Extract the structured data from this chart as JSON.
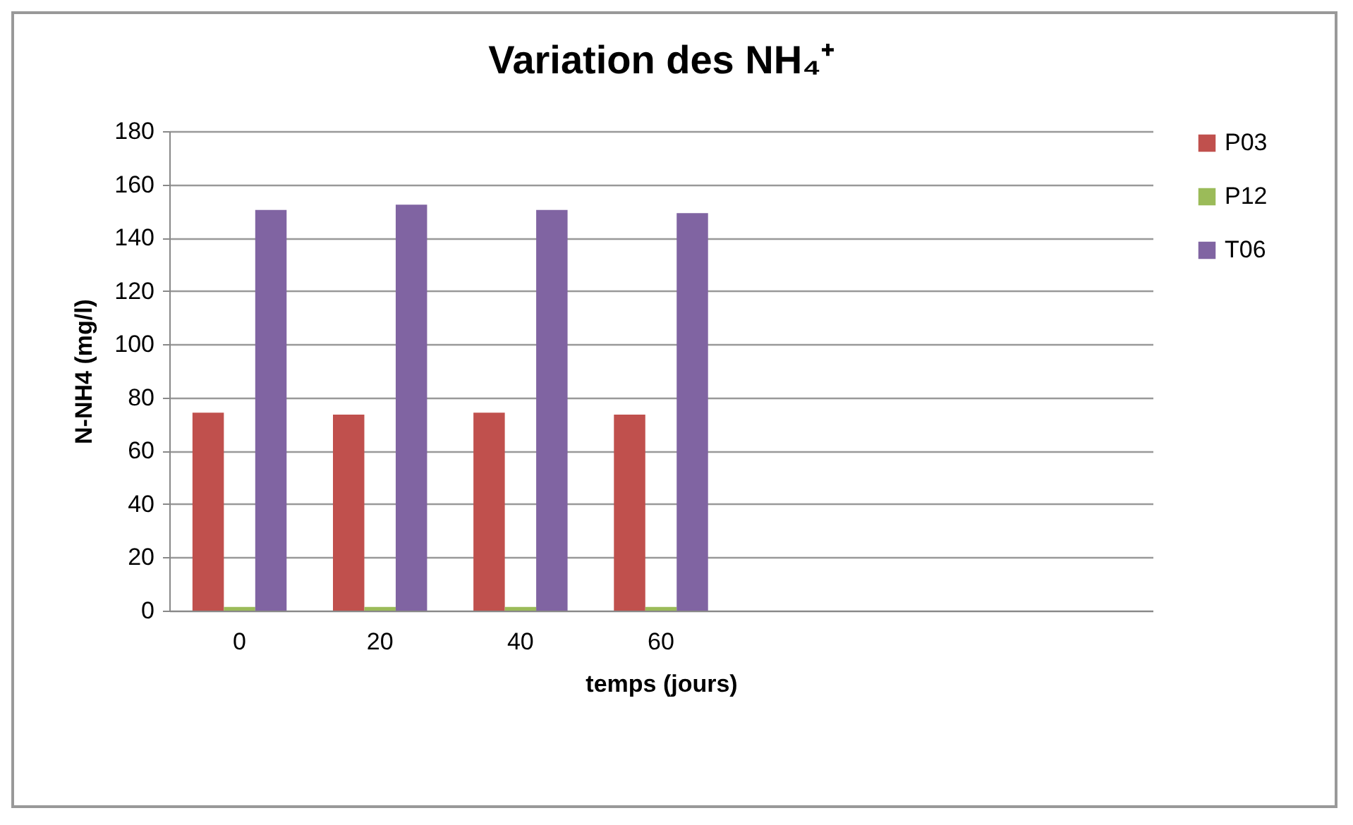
{
  "chart_data": {
    "type": "bar",
    "title": "Variation des NH₄⁺",
    "xlabel": "temps (jours)",
    "ylabel": "N-NH4 (mg/l)",
    "categories": [
      "0",
      "20",
      "40",
      "60",
      null,
      null,
      null
    ],
    "series": [
      {
        "name": "P03",
        "color": "#c0504d",
        "values": [
          74.3,
          73.6,
          74.3,
          73.6,
          null,
          null,
          null
        ]
      },
      {
        "name": "P12",
        "color": "#9bbb59",
        "values": [
          1.4,
          1.4,
          1.4,
          1.4,
          null,
          null,
          null
        ]
      },
      {
        "name": "T06",
        "color": "#8064a2",
        "values": [
          150.4,
          152.4,
          150.4,
          149.2,
          null,
          null,
          null
        ]
      }
    ],
    "ylim": [
      0,
      180
    ],
    "yticks": [
      0,
      20,
      40,
      60,
      80,
      100,
      120,
      140,
      160,
      180
    ],
    "grid": "y",
    "legend": "right"
  }
}
